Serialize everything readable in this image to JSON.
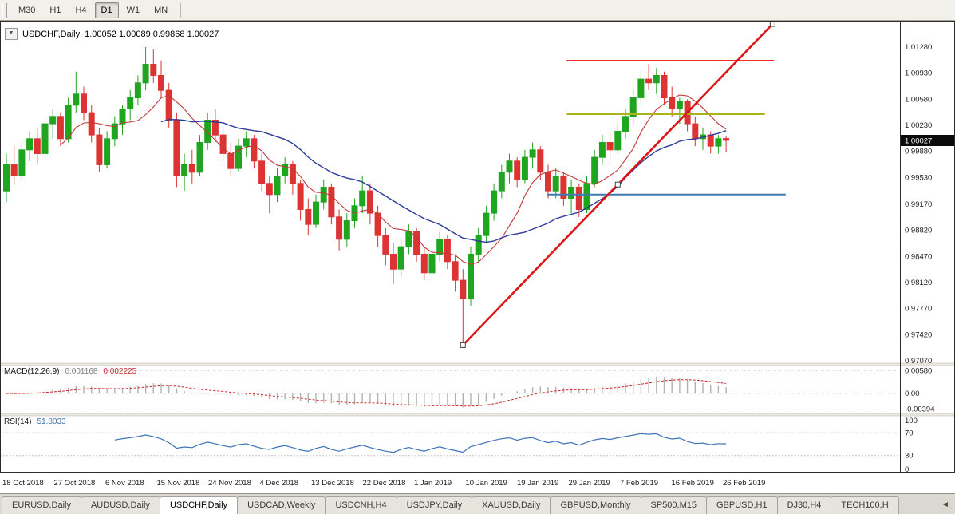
{
  "toolbar": {
    "timeframes": [
      "M30",
      "H1",
      "H4",
      "D1",
      "W1",
      "MN"
    ],
    "active": "D1"
  },
  "icons": {
    "dropdown": "▼",
    "tabs_scroll": "◄"
  },
  "chart_title": {
    "symbol": "USDCHF,Daily",
    "ohlc": "1.00052 1.00089 0.99868 1.00027"
  },
  "indicators": {
    "macd": {
      "label": "MACD(12,26,9)",
      "main_value": "0.001168",
      "signal_value": "0.002225"
    },
    "rsi": {
      "label": "RSI(14)",
      "value": "51.8033"
    }
  },
  "axes": {
    "price_labels": [
      "1.01280",
      "1.00930",
      "1.00580",
      "1.00230",
      "0.99880",
      "0.99530",
      "0.99170",
      "0.98820",
      "0.98470",
      "0.98120",
      "0.97770",
      "0.97420",
      "0.97070"
    ],
    "current_price_tag": "1.00027",
    "macd_labels": [
      {
        "text": "0.00580",
        "v": 0.0058
      },
      {
        "text": "0.00",
        "v": 0
      },
      {
        "text": "-0.00394",
        "v": -0.00394
      }
    ],
    "rsi_labels": [
      {
        "text": "100",
        "v": 100
      },
      {
        "text": "70",
        "v": 70
      },
      {
        "text": "30",
        "v": 30
      },
      {
        "text": "0",
        "v": 0
      }
    ],
    "dates": [
      "18 Oct 2018",
      "27 Oct 2018",
      "6 Nov 2018",
      "15 Nov 2018",
      "24 Nov 2018",
      "4 Dec 2018",
      "13 Dec 2018",
      "22 Dec 2018",
      "1 Jan 2019",
      "10 Jan 2019",
      "19 Jan 2019",
      "29 Jan 2019",
      "7 Feb 2019",
      "16 Feb 2019",
      "26 Feb 2019"
    ]
  },
  "colors": {
    "candle_up": "#1fa51f",
    "candle_down": "#dd3333",
    "ma_fast": "#c03a3a",
    "ma_slow": "#2b3a9b",
    "macd_hist": "#b2b2b2",
    "macd_signal": "#cc2525",
    "rsi_line": "#3e74b8",
    "price_tag_bg": "#0a0a0a",
    "hline_red": "#ee3030",
    "hline_olive": "#aab318",
    "hline_blue": "#3e7cb0",
    "trendline": "#dd1515"
  },
  "chart_data": {
    "type": "candlestick",
    "symbol": "USDCHF",
    "timeframe": "Daily",
    "y_axis": {
      "min": 0.9704,
      "max": 1.0164
    },
    "ohlc": [
      [
        0.9935,
        0.9985,
        0.992,
        0.997
      ],
      [
        0.997,
        0.9995,
        0.9945,
        0.9955
      ],
      [
        0.9955,
        1.0,
        0.995,
        0.999
      ],
      [
        0.999,
        1.0015,
        0.9975,
        1.0005
      ],
      [
        1.0005,
        1.002,
        0.997,
        0.9985
      ],
      [
        0.9985,
        1.003,
        0.998,
        1.0025
      ],
      [
        1.0025,
        1.0045,
        1.0005,
        1.0035
      ],
      [
        1.0035,
        1.004,
        0.9995,
        1.0005
      ],
      [
        1.0005,
        1.006,
        1.0,
        1.005
      ],
      [
        1.005,
        1.0095,
        1.004,
        1.0065
      ],
      [
        1.0065,
        1.0075,
        1.003,
        1.004
      ],
      [
        1.004,
        1.005,
        1.0,
        1.001
      ],
      [
        1.001,
        1.002,
        0.996,
        0.997
      ],
      [
        0.997,
        1.0015,
        0.9965,
        1.0005
      ],
      [
        1.0005,
        1.0035,
        0.9995,
        1.0025
      ],
      [
        1.0025,
        1.005,
        1.001,
        1.0045
      ],
      [
        1.0045,
        1.007,
        1.003,
        1.006
      ],
      [
        1.006,
        1.009,
        1.005,
        1.008
      ],
      [
        1.008,
        1.0128,
        1.007,
        1.0105
      ],
      [
        1.0105,
        1.0125,
        1.008,
        1.009
      ],
      [
        1.009,
        1.011,
        1.006,
        1.007
      ],
      [
        1.007,
        1.008,
        1.002,
        1.003
      ],
      [
        1.003,
        1.004,
        0.994,
        0.9955
      ],
      [
        0.9955,
        0.9985,
        0.9935,
        0.997
      ],
      [
        0.997,
        0.999,
        0.9945,
        0.996
      ],
      [
        0.996,
        1.001,
        0.9955,
        1.0
      ],
      [
        1.0,
        1.004,
        0.999,
        1.003
      ],
      [
        1.003,
        1.0045,
        1.0,
        1.001
      ],
      [
        1.001,
        1.002,
        0.9975,
        0.9985
      ],
      [
        0.9985,
        1.0,
        0.9955,
        0.9965
      ],
      [
        0.9965,
        1.0005,
        0.996,
        0.9995
      ],
      [
        0.9995,
        1.0015,
        0.998,
        1.0005
      ],
      [
        1.0005,
        1.001,
        0.9965,
        0.9975
      ],
      [
        0.9975,
        0.9985,
        0.9935,
        0.9945
      ],
      [
        0.9945,
        0.9955,
        0.9905,
        0.993
      ],
      [
        0.993,
        0.9965,
        0.992,
        0.9955
      ],
      [
        0.9955,
        0.998,
        0.9945,
        0.997
      ],
      [
        0.997,
        0.9975,
        0.993,
        0.9945
      ],
      [
        0.9945,
        0.995,
        0.9895,
        0.991
      ],
      [
        0.991,
        0.9925,
        0.9875,
        0.989
      ],
      [
        0.989,
        0.993,
        0.9885,
        0.992
      ],
      [
        0.992,
        0.995,
        0.991,
        0.994
      ],
      [
        0.994,
        0.9945,
        0.989,
        0.99
      ],
      [
        0.99,
        0.991,
        0.9855,
        0.987
      ],
      [
        0.987,
        0.9905,
        0.986,
        0.9895
      ],
      [
        0.9895,
        0.9925,
        0.9885,
        0.9915
      ],
      [
        0.9915,
        0.9955,
        0.9905,
        0.9935
      ],
      [
        0.9935,
        0.9945,
        0.989,
        0.9905
      ],
      [
        0.9905,
        0.9915,
        0.986,
        0.9875
      ],
      [
        0.9875,
        0.9885,
        0.9835,
        0.985
      ],
      [
        0.985,
        0.9865,
        0.981,
        0.983
      ],
      [
        0.983,
        0.987,
        0.982,
        0.986
      ],
      [
        0.986,
        0.989,
        0.985,
        0.988
      ],
      [
        0.988,
        0.9885,
        0.984,
        0.985
      ],
      [
        0.985,
        0.986,
        0.9815,
        0.9825
      ],
      [
        0.9825,
        0.986,
        0.9815,
        0.985
      ],
      [
        0.985,
        0.988,
        0.984,
        0.987
      ],
      [
        0.987,
        0.9875,
        0.983,
        0.984
      ],
      [
        0.984,
        0.985,
        0.98,
        0.9815
      ],
      [
        0.9815,
        0.983,
        0.9725,
        0.979
      ],
      [
        0.979,
        0.986,
        0.978,
        0.985
      ],
      [
        0.985,
        0.9885,
        0.984,
        0.9875
      ],
      [
        0.9875,
        0.9915,
        0.9865,
        0.9905
      ],
      [
        0.9905,
        0.9945,
        0.9895,
        0.9935
      ],
      [
        0.9935,
        0.997,
        0.9925,
        0.996
      ],
      [
        0.996,
        0.9985,
        0.9945,
        0.9975
      ],
      [
        0.9975,
        0.998,
        0.994,
        0.995
      ],
      [
        0.995,
        0.999,
        0.9945,
        0.998
      ],
      [
        0.998,
        1.0,
        0.9965,
        0.999
      ],
      [
        0.999,
        0.9995,
        0.995,
        0.996
      ],
      [
        0.996,
        0.997,
        0.9925,
        0.9935
      ],
      [
        0.9935,
        0.9965,
        0.9925,
        0.9955
      ],
      [
        0.9955,
        0.996,
        0.9915,
        0.9925
      ],
      [
        0.9925,
        0.995,
        0.9905,
        0.994
      ],
      [
        0.994,
        0.9945,
        0.99,
        0.991
      ],
      [
        0.991,
        0.9955,
        0.9905,
        0.9945
      ],
      [
        0.9945,
        0.999,
        0.994,
        0.998
      ],
      [
        0.998,
        1.001,
        0.997,
        1.0
      ],
      [
        1.0,
        1.0015,
        0.9975,
        0.999
      ],
      [
        0.999,
        1.0025,
        0.9985,
        1.0015
      ],
      [
        1.0015,
        1.0045,
        1.0005,
        1.0035
      ],
      [
        1.0035,
        1.007,
        1.0025,
        1.006
      ],
      [
        1.006,
        1.0095,
        1.005,
        1.0085
      ],
      [
        1.0085,
        1.0105,
        1.007,
        1.008
      ],
      [
        1.008,
        1.01,
        1.0065,
        1.009
      ],
      [
        1.009,
        1.0095,
        1.005,
        1.006
      ],
      [
        1.006,
        1.0075,
        1.0035,
        1.0045
      ],
      [
        1.0045,
        1.006,
        1.0025,
        1.0055
      ],
      [
        1.0055,
        1.0058,
        1.0015,
        1.0025
      ],
      [
        1.0025,
        1.0035,
        0.9995,
        1.0005
      ],
      [
        1.0005,
        1.002,
        0.999,
        1.001
      ],
      [
        1.001,
        1.0015,
        0.9985,
        0.9995
      ],
      [
        0.9995,
        1.001,
        0.9985,
        1.0005
      ],
      [
        1.00052,
        1.00089,
        0.99868,
        1.00027
      ]
    ],
    "moving_averages": [
      {
        "period": 8,
        "color": "#c03a3a"
      },
      {
        "period": 21,
        "color": "#2b3a9b"
      }
    ],
    "objects": {
      "trendline": {
        "color": "#dd1515",
        "i1": 59,
        "p1": 0.9728,
        "i2": 99,
        "p2": 1.0159
      },
      "hlines": [
        {
          "color": "#ee3030",
          "price": 1.011,
          "i1": 72.4,
          "i2": 99.2,
          "width": 1.6
        },
        {
          "color": "#aab318",
          "price": 1.0038,
          "i1": 72.4,
          "i2": 98.0,
          "width": 2.0
        },
        {
          "color": "#3e7cb0",
          "price": 0.993,
          "i1": 69.8,
          "i2": 100.7,
          "width": 2.0
        }
      ]
    },
    "macd": {
      "fast": 12,
      "slow": 26,
      "signal": 9,
      "range": {
        "min": -0.00508,
        "max": 0.00712
      }
    },
    "rsi": {
      "period": 14,
      "levels": [
        30,
        70
      ],
      "range": {
        "min": 0,
        "max": 100
      }
    }
  },
  "tabs": {
    "items": [
      "EURUSD,Daily",
      "AUDUSD,Daily",
      "USDCHF,Daily",
      "USDCAD,Weekly",
      "USDCNH,H4",
      "USDJPY,Daily",
      "XAUUSD,Daily",
      "GBPUSD,Monthly",
      "SP500,M15",
      "GBPUSD,H1",
      "DJ30,H4",
      "TECH100,H"
    ],
    "active": "USDCHF,Daily"
  }
}
